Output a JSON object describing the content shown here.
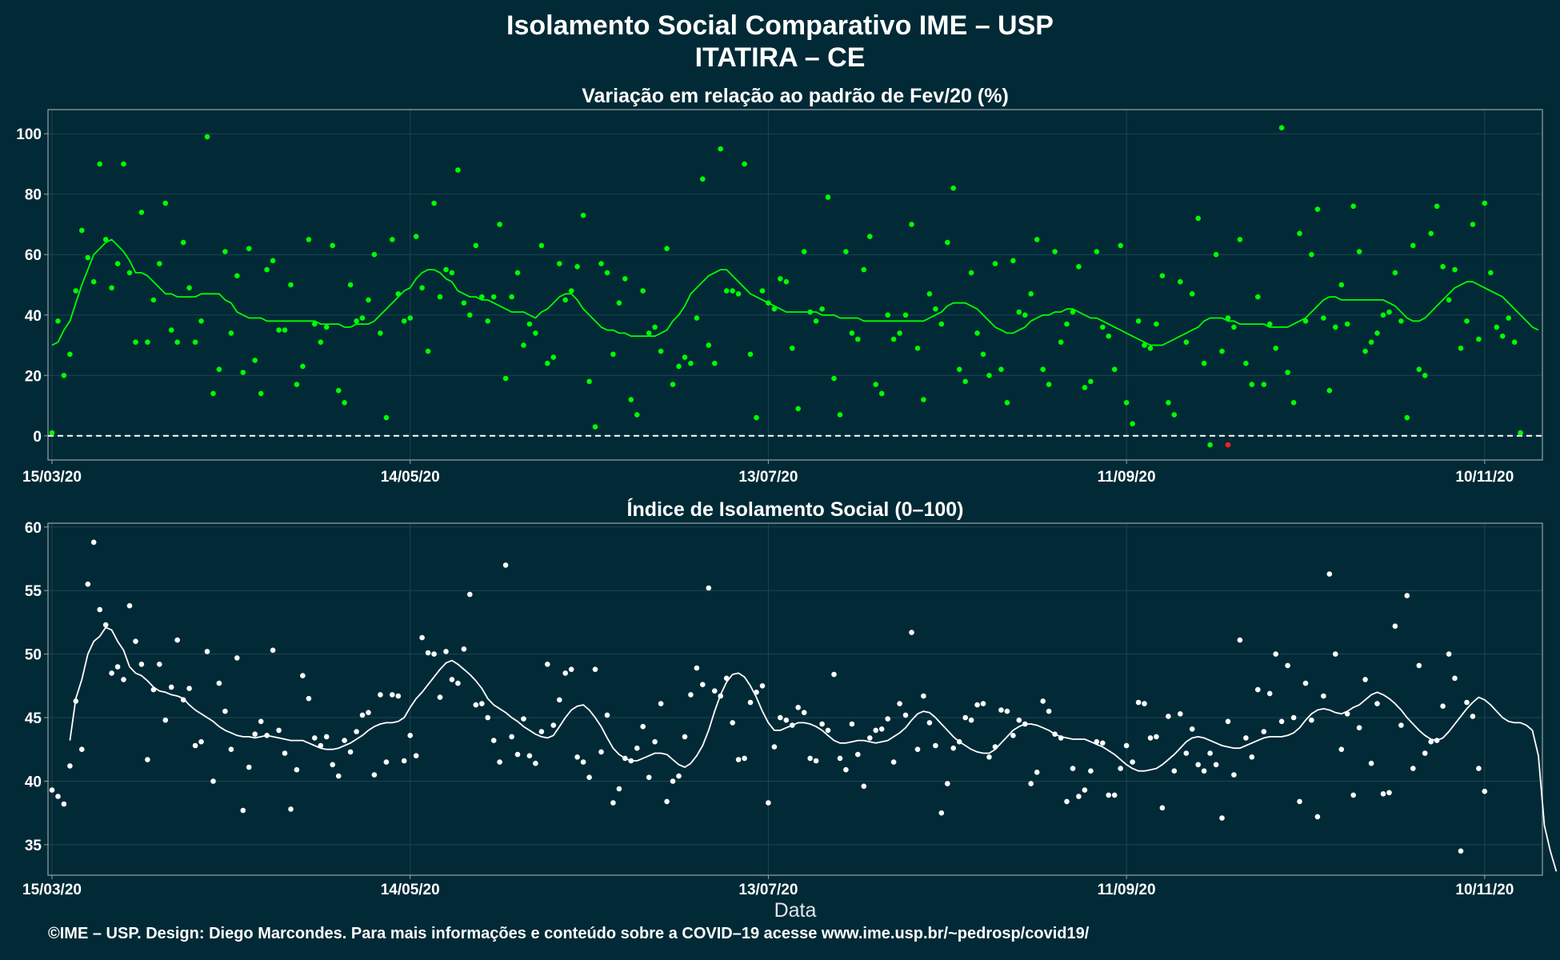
{
  "titles": {
    "main": "Isolamento Social Comparativo IME – USP",
    "location": "ITATIRA – CE"
  },
  "footer": "©IME – USP. Design: Diego Marcondes. Para mais informações e conteúdo sobre a COVID–19 acesse www.ime.usp.br/~pedrosp/covid19/",
  "colors": {
    "background": "#012a36",
    "panel_border": "#9aa4a8",
    "grid": "#1f4450",
    "top_series": "#00ff00",
    "top_negative_point": "#ff2020",
    "bottom_series": "#ffffff"
  },
  "chart_data": [
    {
      "type": "scatter",
      "title": "Variação em relação ao padrão de Fev/20 (%)",
      "xlabel": "",
      "ylabel": "",
      "x_start": "15/03/20",
      "days": 250,
      "x_tick_labels": [
        "15/03/20",
        "14/05/20",
        "13/07/20",
        "11/09/20",
        "10/11/20"
      ],
      "x_tick_days": [
        0,
        60,
        120,
        180,
        240
      ],
      "y_ticks": [
        0,
        20,
        40,
        60,
        80,
        100
      ],
      "ylim": [
        -8,
        108
      ],
      "reference_line": 0,
      "series": [
        {
          "kind": "points",
          "values": [
            1,
            38,
            20,
            27,
            48,
            68,
            59,
            51,
            90,
            65,
            49,
            57,
            90,
            54,
            31,
            74,
            31,
            45,
            57,
            77,
            35,
            31,
            64,
            49,
            31,
            38,
            99,
            14,
            22,
            61,
            34,
            53,
            21,
            62,
            25,
            14,
            55,
            58,
            35,
            35,
            50,
            17,
            23,
            65,
            37,
            31,
            36,
            63,
            15,
            11,
            50,
            38,
            39,
            45,
            60,
            34,
            6,
            65,
            47,
            38,
            39,
            66,
            49,
            28,
            77,
            46,
            55,
            54,
            88,
            44,
            40,
            63,
            46,
            38,
            46,
            70,
            19,
            46,
            54,
            30,
            37,
            34,
            63,
            24,
            26,
            57,
            45,
            48,
            56,
            73,
            18,
            3,
            57,
            54,
            27,
            44,
            52,
            12,
            7,
            48,
            34,
            36,
            28,
            62,
            17,
            23,
            26,
            24,
            39,
            85,
            30,
            24,
            95,
            48,
            48,
            47,
            90,
            27,
            6,
            48,
            44,
            42,
            52,
            51,
            29,
            9,
            61,
            41,
            38,
            42,
            79,
            19,
            7,
            61,
            34,
            32,
            55,
            66,
            17,
            14,
            40,
            32,
            34,
            40,
            70,
            29,
            12,
            47,
            42,
            37,
            64,
            82,
            22,
            18,
            54,
            34,
            27,
            20,
            57,
            22,
            11,
            58,
            41,
            40,
            47,
            65,
            22,
            17,
            61,
            31,
            37,
            41,
            56,
            16,
            18,
            61,
            36,
            33,
            22,
            63,
            11,
            4,
            38,
            30,
            29,
            37,
            53,
            11,
            7,
            51,
            31,
            47,
            72,
            24,
            -3,
            60,
            28,
            39,
            36,
            65,
            24,
            17,
            46,
            17,
            37,
            29,
            102,
            21,
            11,
            67,
            38,
            60,
            75,
            39,
            15,
            36,
            50,
            37,
            76,
            61,
            28,
            31,
            34,
            40,
            41,
            54,
            38,
            6,
            63,
            22,
            20,
            67,
            76,
            56,
            45,
            55,
            29,
            38,
            70,
            32,
            77,
            54,
            36,
            33,
            39,
            31,
            1
          ]
        },
        {
          "kind": "line",
          "values": [
            30,
            31,
            35,
            38,
            44,
            50,
            55,
            60,
            62,
            64,
            65,
            63,
            61,
            58,
            54,
            54,
            53,
            51,
            49,
            47,
            47,
            46,
            46,
            46,
            46,
            47,
            47,
            47,
            47,
            45,
            44,
            41,
            40,
            39,
            39,
            39,
            38,
            38,
            38,
            38,
            38,
            38,
            38,
            38,
            38,
            37,
            37,
            37,
            37,
            36,
            36,
            37,
            37,
            37,
            38,
            40,
            42,
            44,
            46,
            48,
            49,
            52,
            54,
            55,
            55,
            54,
            52,
            51,
            48,
            47,
            46,
            46,
            45,
            45,
            44,
            43,
            42,
            41,
            41,
            41,
            40,
            39,
            41,
            42,
            44,
            46,
            47,
            47,
            45,
            42,
            40,
            38,
            36,
            35,
            35,
            34,
            34,
            33,
            33,
            33,
            33,
            33,
            34,
            35,
            38,
            40,
            43,
            47,
            49,
            51,
            53,
            54,
            55,
            55,
            53,
            51,
            49,
            47,
            46,
            45,
            44,
            43,
            42,
            41,
            41,
            41,
            41,
            41,
            41,
            40,
            40,
            40,
            39,
            39,
            39,
            39,
            38,
            38,
            38,
            38,
            38,
            38,
            38,
            38,
            38,
            38,
            38,
            39,
            40,
            41,
            43,
            44,
            44,
            44,
            43,
            42,
            40,
            38,
            36,
            35,
            34,
            34,
            35,
            36,
            38,
            39,
            40,
            40,
            41,
            41,
            42,
            42,
            41,
            40,
            39,
            39,
            38,
            37,
            36,
            35,
            34,
            33,
            32,
            31,
            30,
            30,
            30,
            31,
            32,
            33,
            34,
            35,
            36,
            38,
            39,
            39,
            39,
            38,
            38,
            37,
            37,
            37,
            37,
            37,
            36,
            36,
            36,
            36,
            37,
            38,
            39,
            41,
            43,
            45,
            46,
            46,
            45,
            45,
            45,
            45,
            45,
            45,
            45,
            45,
            44,
            43,
            41,
            39,
            38,
            38,
            39,
            41,
            43,
            45,
            47,
            49,
            50,
            51,
            51,
            50,
            49,
            48,
            47,
            46,
            44,
            42,
            40,
            38,
            36,
            35
          ]
        },
        {
          "kind": "highlight",
          "index": 197,
          "value": -3
        }
      ]
    },
    {
      "type": "scatter",
      "title": "Índice de Isolamento Social (0–100)",
      "xlabel": "Data",
      "ylabel": "",
      "x_start": "15/03/20",
      "days": 250,
      "x_tick_labels": [
        "15/03/20",
        "14/05/20",
        "13/07/20",
        "11/09/20",
        "10/11/20"
      ],
      "x_tick_days": [
        0,
        60,
        120,
        180,
        240
      ],
      "y_ticks": [
        35,
        40,
        45,
        50,
        55,
        60
      ],
      "ylim": [
        32.6,
        60.3
      ],
      "series": [
        {
          "kind": "points",
          "values": [
            39.3,
            38.8,
            38.2,
            41.2,
            46.3,
            42.5,
            55.5,
            58.8,
            53.5,
            52.3,
            48.5,
            49.0,
            48.0,
            53.8,
            51.0,
            49.2,
            41.7,
            47.2,
            49.2,
            44.8,
            47.4,
            51.1,
            46.4,
            47.3,
            42.8,
            43.1,
            50.2,
            40.0,
            47.7,
            45.5,
            42.5,
            49.7,
            37.7,
            41.1,
            43.7,
            44.7,
            43.6,
            50.3,
            44.0,
            42.2,
            37.8,
            40.9,
            48.3,
            46.5,
            43.4,
            42.8,
            43.5,
            41.3,
            40.4,
            43.2,
            42.3,
            43.9,
            45.2,
            45.4,
            40.5,
            46.8,
            41.5,
            46.8,
            46.7,
            41.6,
            43.6,
            42.0,
            51.3,
            50.1,
            50.0,
            46.6,
            50.2,
            48.0,
            47.7,
            50.4,
            54.7,
            46.0,
            46.1,
            45.0,
            43.2,
            41.5,
            57.0,
            43.5,
            42.1,
            44.9,
            42.0,
            41.4,
            43.9,
            49.2,
            44.4,
            46.4,
            48.5,
            48.8,
            41.9,
            41.5,
            40.3,
            48.8,
            42.3,
            45.2,
            38.3,
            39.4,
            41.8,
            41.6,
            42.6,
            44.3,
            40.3,
            43.1,
            46.1,
            38.4,
            40.0,
            40.4,
            43.5,
            46.8,
            48.9,
            47.6,
            55.2,
            47.1,
            46.7,
            48.1,
            44.6,
            41.7,
            41.8,
            46.2,
            47.0,
            47.5,
            38.3,
            42.7,
            45.0,
            44.8,
            44.4,
            45.8,
            45.4,
            41.8,
            41.6,
            44.5,
            44.0,
            48.4,
            41.8,
            40.9,
            44.5,
            42.1,
            39.6,
            43.4,
            44.0,
            44.1,
            44.9,
            41.5,
            46.1,
            45.2,
            51.7,
            42.5,
            46.7,
            44.6,
            42.8,
            37.5,
            39.8,
            42.6,
            43.1,
            45.0,
            44.8,
            46.0,
            46.1,
            41.9,
            42.7,
            45.6,
            45.5,
            43.6,
            44.8,
            44.5,
            39.8,
            40.7,
            46.3,
            45.5,
            43.7,
            43.4,
            38.4,
            41.0,
            38.8,
            39.3,
            40.8,
            43.1,
            43.0,
            38.9,
            38.9,
            41.0,
            42.8,
            41.5,
            46.2,
            46.1,
            43.4,
            43.5,
            37.9,
            45.1,
            40.8,
            45.3,
            42.2,
            44.1,
            41.3,
            40.8,
            42.2,
            41.3,
            37.1,
            44.7,
            40.5,
            51.1,
            43.4,
            41.9,
            47.2,
            43.9,
            46.9,
            50.0,
            44.7,
            49.1,
            45.0,
            38.4,
            47.7,
            44.8,
            37.2,
            46.7,
            56.3,
            50.0,
            42.5,
            45.3,
            38.9,
            44.2,
            48.0,
            41.4,
            46.1,
            39.0,
            39.1,
            52.2,
            44.4,
            54.6,
            41.0,
            49.1,
            42.2,
            43.1,
            43.2,
            45.9,
            50.0,
            48.1,
            34.5,
            46.2,
            45.1,
            41.0,
            39.2
          ]
        },
        {
          "kind": "line",
          "start_index": 3,
          "values": [
            43.2,
            46.5,
            48.0,
            50.0,
            51.0,
            51.4,
            52.1,
            51.9,
            51.0,
            50.3,
            49.0,
            48.5,
            48.3,
            47.9,
            47.4,
            47.1,
            47.0,
            46.8,
            46.7,
            46.5,
            46.0,
            45.6,
            45.3,
            45.0,
            44.7,
            44.3,
            44.0,
            43.8,
            43.6,
            43.5,
            43.5,
            43.4,
            43.5,
            43.6,
            43.5,
            43.4,
            43.3,
            43.2,
            43.2,
            43.2,
            43.0,
            42.8,
            42.6,
            42.5,
            42.5,
            42.6,
            42.8,
            43.0,
            43.3,
            43.6,
            44.0,
            44.3,
            44.5,
            44.6,
            44.6,
            44.7,
            45.0,
            45.8,
            46.5,
            47.0,
            47.6,
            48.2,
            48.8,
            49.3,
            49.5,
            49.2,
            48.8,
            48.4,
            47.9,
            47.3,
            46.5,
            46.0,
            45.7,
            45.4,
            45.0,
            44.7,
            44.3,
            44.0,
            43.7,
            43.5,
            43.4,
            43.6,
            44.3,
            45.0,
            45.6,
            45.9,
            46.0,
            45.6,
            45.0,
            44.3,
            43.4,
            42.6,
            42.1,
            41.8,
            41.6,
            41.6,
            41.8,
            42.0,
            42.2,
            42.2,
            42.1,
            41.7,
            41.3,
            41.1,
            41.4,
            42.0,
            42.8,
            44.0,
            45.5,
            46.8,
            47.8,
            48.4,
            48.5,
            48.2,
            47.5,
            46.6,
            45.5,
            44.6,
            44.0,
            44.0,
            44.2,
            44.4,
            44.6,
            44.6,
            44.5,
            44.3,
            44.0,
            43.6,
            43.2,
            43.0,
            43.0,
            43.1,
            43.2,
            43.2,
            43.1,
            43.0,
            43.1,
            43.2,
            43.5,
            43.8,
            44.2,
            44.8,
            45.3,
            45.5,
            45.4,
            45.0,
            44.5,
            44.0,
            43.5,
            43.1,
            42.8,
            42.5,
            42.3,
            42.2,
            42.2,
            42.5,
            43.0,
            43.5,
            44.0,
            44.3,
            44.5,
            44.5,
            44.4,
            44.2,
            44.0,
            43.7,
            43.5,
            43.4,
            43.3,
            43.3,
            43.3,
            43.1,
            42.9,
            42.7,
            42.4,
            42.1,
            41.7,
            41.3,
            41.0,
            40.8,
            40.8,
            40.9,
            41.0,
            41.3,
            41.7,
            42.1,
            42.6,
            43.1,
            43.4,
            43.5,
            43.4,
            43.2,
            43.0,
            42.8,
            42.7,
            42.6,
            42.6,
            42.8,
            43.0,
            43.2,
            43.4,
            43.5,
            43.5,
            43.5,
            43.6,
            43.8,
            44.2,
            44.8,
            45.3,
            45.6,
            45.7,
            45.6,
            45.4,
            45.3,
            45.5,
            45.8,
            46.0,
            46.4,
            46.8,
            47.0,
            46.8,
            46.5,
            46.1,
            45.6,
            45.0,
            44.5,
            44.0,
            43.6,
            43.3,
            43.2,
            43.4,
            43.9,
            44.5,
            45.1,
            45.7,
            46.2,
            46.6,
            46.4,
            46.0,
            45.5,
            45.0,
            44.7,
            44.6,
            44.6,
            44.4,
            44.0,
            42.0,
            36.5,
            34.5,
            32.9
          ]
        }
      ]
    }
  ]
}
